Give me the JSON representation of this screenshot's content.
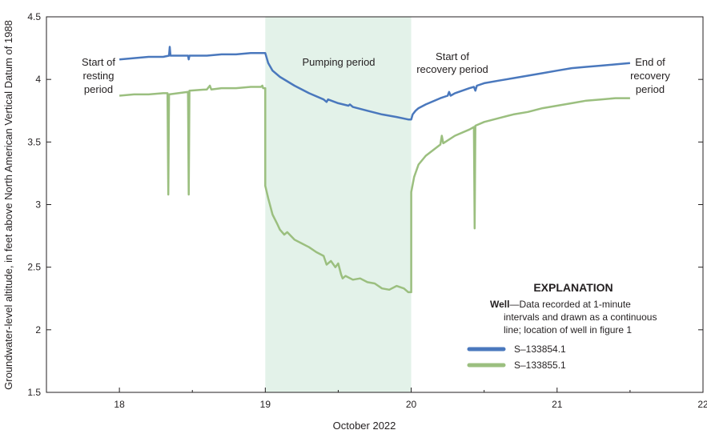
{
  "chart_data": {
    "type": "line",
    "xlabel": "October 2022",
    "ylabel": "Groundwater-level altitude, in feet above North American Vertical Datum of 1988",
    "xlim": [
      17.5,
      22
    ],
    "ylim": [
      1.5,
      4.5
    ],
    "x_ticks": [
      18,
      19,
      20,
      21,
      22
    ],
    "x_tick_labels": [
      "18",
      "19",
      "20",
      "21",
      "22"
    ],
    "y_ticks": [
      1.5,
      2,
      2.5,
      3,
      3.5,
      4,
      4.5
    ],
    "y_tick_labels": [
      "1.5",
      "2",
      "2.5",
      "3",
      "3.5",
      "4",
      "4.5"
    ],
    "grid": false,
    "shaded_region": {
      "x": [
        19.0,
        20.0
      ],
      "label": "Pumping period",
      "color": "#e3f2e9"
    },
    "annotations": [
      {
        "lines": [
          "Start of",
          "resting",
          "period"
        ]
      },
      {
        "lines": [
          "Start of",
          "recovery period"
        ]
      },
      {
        "lines": [
          "End of",
          "recovery",
          "period"
        ]
      }
    ],
    "series": [
      {
        "name": "S–133854.1",
        "color": "#4a78bd",
        "points": [
          [
            18.0,
            4.16
          ],
          [
            18.1,
            4.17
          ],
          [
            18.2,
            4.18
          ],
          [
            18.3,
            4.18
          ],
          [
            18.34,
            4.19
          ],
          [
            18.345,
            4.26
          ],
          [
            18.35,
            4.19
          ],
          [
            18.47,
            4.19
          ],
          [
            18.475,
            4.16
          ],
          [
            18.48,
            4.19
          ],
          [
            18.6,
            4.19
          ],
          [
            18.7,
            4.2
          ],
          [
            18.8,
            4.2
          ],
          [
            18.9,
            4.21
          ],
          [
            19.0,
            4.21
          ],
          [
            19.02,
            4.13
          ],
          [
            19.05,
            4.07
          ],
          [
            19.1,
            4.02
          ],
          [
            19.2,
            3.95
          ],
          [
            19.3,
            3.89
          ],
          [
            19.4,
            3.84
          ],
          [
            19.42,
            3.82
          ],
          [
            19.43,
            3.84
          ],
          [
            19.5,
            3.81
          ],
          [
            19.57,
            3.79
          ],
          [
            19.58,
            3.8
          ],
          [
            19.6,
            3.78
          ],
          [
            19.7,
            3.75
          ],
          [
            19.8,
            3.72
          ],
          [
            19.9,
            3.7
          ],
          [
            19.98,
            3.68
          ],
          [
            20.0,
            3.68
          ],
          [
            20.01,
            3.72
          ],
          [
            20.03,
            3.75
          ],
          [
            20.05,
            3.77
          ],
          [
            20.1,
            3.8
          ],
          [
            20.2,
            3.85
          ],
          [
            20.25,
            3.87
          ],
          [
            20.26,
            3.9
          ],
          [
            20.27,
            3.87
          ],
          [
            20.3,
            3.89
          ],
          [
            20.4,
            3.93
          ],
          [
            20.43,
            3.94
          ],
          [
            20.44,
            3.91
          ],
          [
            20.45,
            3.95
          ],
          [
            20.5,
            3.97
          ],
          [
            20.6,
            3.99
          ],
          [
            20.7,
            4.01
          ],
          [
            20.8,
            4.03
          ],
          [
            20.9,
            4.05
          ],
          [
            21.0,
            4.07
          ],
          [
            21.1,
            4.09
          ],
          [
            21.2,
            4.1
          ],
          [
            21.3,
            4.11
          ],
          [
            21.4,
            4.12
          ],
          [
            21.5,
            4.13
          ]
        ]
      },
      {
        "name": "S–133855.1",
        "color": "#9bbf7f",
        "points": [
          [
            18.0,
            3.87
          ],
          [
            18.1,
            3.88
          ],
          [
            18.2,
            3.88
          ],
          [
            18.3,
            3.89
          ],
          [
            18.33,
            3.89
          ],
          [
            18.335,
            3.08
          ],
          [
            18.34,
            3.88
          ],
          [
            18.47,
            3.9
          ],
          [
            18.475,
            3.08
          ],
          [
            18.48,
            3.91
          ],
          [
            18.6,
            3.92
          ],
          [
            18.62,
            3.95
          ],
          [
            18.63,
            3.92
          ],
          [
            18.7,
            3.93
          ],
          [
            18.8,
            3.93
          ],
          [
            18.9,
            3.94
          ],
          [
            18.97,
            3.94
          ],
          [
            18.98,
            3.95
          ],
          [
            18.985,
            3.93
          ],
          [
            19.0,
            3.93
          ],
          [
            19.0,
            3.15
          ],
          [
            19.02,
            3.05
          ],
          [
            19.05,
            2.92
          ],
          [
            19.08,
            2.85
          ],
          [
            19.1,
            2.8
          ],
          [
            19.13,
            2.76
          ],
          [
            19.15,
            2.78
          ],
          [
            19.2,
            2.72
          ],
          [
            19.25,
            2.69
          ],
          [
            19.3,
            2.66
          ],
          [
            19.35,
            2.62
          ],
          [
            19.4,
            2.59
          ],
          [
            19.42,
            2.52
          ],
          [
            19.45,
            2.55
          ],
          [
            19.48,
            2.5
          ],
          [
            19.5,
            2.53
          ],
          [
            19.52,
            2.44
          ],
          [
            19.53,
            2.41
          ],
          [
            19.55,
            2.43
          ],
          [
            19.6,
            2.4
          ],
          [
            19.65,
            2.41
          ],
          [
            19.7,
            2.38
          ],
          [
            19.75,
            2.37
          ],
          [
            19.8,
            2.33
          ],
          [
            19.85,
            2.32
          ],
          [
            19.9,
            2.35
          ],
          [
            19.95,
            2.33
          ],
          [
            19.98,
            2.3
          ],
          [
            20.0,
            2.3
          ],
          [
            20.0,
            3.1
          ],
          [
            20.02,
            3.22
          ],
          [
            20.05,
            3.32
          ],
          [
            20.1,
            3.39
          ],
          [
            20.2,
            3.48
          ],
          [
            20.21,
            3.55
          ],
          [
            20.22,
            3.49
          ],
          [
            20.3,
            3.55
          ],
          [
            20.4,
            3.6
          ],
          [
            20.43,
            3.62
          ],
          [
            20.435,
            2.81
          ],
          [
            20.44,
            3.63
          ],
          [
            20.5,
            3.66
          ],
          [
            20.6,
            3.69
          ],
          [
            20.7,
            3.72
          ],
          [
            20.8,
            3.74
          ],
          [
            20.9,
            3.77
          ],
          [
            21.0,
            3.79
          ],
          [
            21.1,
            3.81
          ],
          [
            21.2,
            3.83
          ],
          [
            21.3,
            3.84
          ],
          [
            21.4,
            3.85
          ],
          [
            21.5,
            3.85
          ]
        ]
      }
    ],
    "legend": {
      "title": "EXPLANATION",
      "heading": "Well",
      "description_lines": [
        "—Data recorded at 1-minute",
        "intervals and drawn as a continuous",
        "line; location of well in figure 1"
      ],
      "placement": "bottom-right"
    }
  }
}
